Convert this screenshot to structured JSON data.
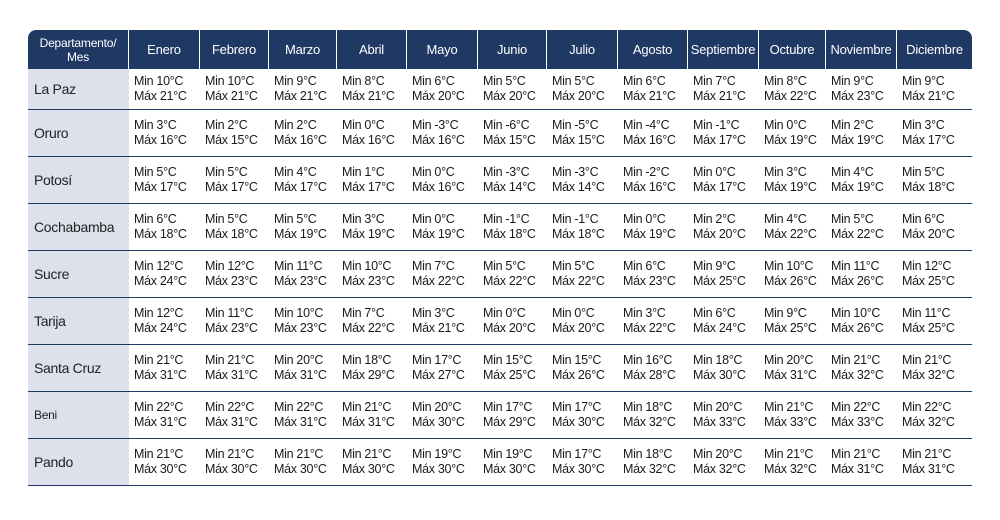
{
  "chart_data": {
    "type": "table",
    "header_corner": [
      "Departamento/",
      "Mes"
    ],
    "months": [
      "Enero",
      "Febrero",
      "Marzo",
      "Abril",
      "Mayo",
      "Junio",
      "Julio",
      "Agosto",
      "Septiembre",
      "Octubre",
      "Noviembre",
      "Diciembre"
    ],
    "rows": [
      {
        "dept": "La Paz",
        "cells": [
          [
            "Min 10°C",
            "Máx 21°C"
          ],
          [
            "Min 10°C",
            "Máx 21°C"
          ],
          [
            "Min 9°C",
            "Máx 21°C"
          ],
          [
            "Min 8°C",
            "Máx 21°C"
          ],
          [
            "Min 6°C",
            "Máx 20°C"
          ],
          [
            "Min 5°C",
            "Máx 20°C"
          ],
          [
            "Min 5°C",
            "Máx 20°C"
          ],
          [
            "Min 6°C",
            "Máx 21°C"
          ],
          [
            "Min 7°C",
            "Máx 21°C"
          ],
          [
            "Min 8°C",
            "Máx 22°C"
          ],
          [
            "Min 9°C",
            "Máx 23°C"
          ],
          [
            "Min 9°C",
            "Máx 21°C"
          ]
        ]
      },
      {
        "dept": "Oruro",
        "cells": [
          [
            "Min 3°C",
            "Máx 16°C"
          ],
          [
            "Min 2°C",
            "Máx 15°C"
          ],
          [
            "Min 2°C",
            "Máx 16°C"
          ],
          [
            "Min 0°C",
            "Máx 16°C"
          ],
          [
            "Min -3°C",
            "Máx 16°C"
          ],
          [
            "Min -6°C",
            "Máx 15°C"
          ],
          [
            "Min -5°C",
            "Máx 15°C"
          ],
          [
            "Min -4°C",
            "Máx 16°C"
          ],
          [
            "Min -1°C",
            "Máx 17°C"
          ],
          [
            "Min 0°C",
            "Máx 19°C"
          ],
          [
            "Min 2°C",
            "Máx 19°C"
          ],
          [
            "Min 3°C",
            "Máx 17°C"
          ]
        ]
      },
      {
        "dept": "Potosí",
        "cells": [
          [
            "Min 5°C",
            "Máx 17°C"
          ],
          [
            "Min 5°C",
            "Máx 17°C"
          ],
          [
            "Min 4°C",
            "Máx 17°C"
          ],
          [
            "Min 1°C",
            "Máx 17°C"
          ],
          [
            "Min 0°C",
            "Máx 16°C"
          ],
          [
            "Min -3°C",
            "Máx 14°C"
          ],
          [
            "Min -3°C",
            "Máx 14°C"
          ],
          [
            "Min -2°C",
            "Máx 16°C"
          ],
          [
            "Min 0°C",
            "Máx 17°C"
          ],
          [
            "Min 3°C",
            "Máx 19°C"
          ],
          [
            "Min 4°C",
            "Máx 19°C"
          ],
          [
            "Min 5°C",
            "Máx 18°C"
          ]
        ]
      },
      {
        "dept": "Cochabamba",
        "cells": [
          [
            "Min 6°C",
            "Máx 18°C"
          ],
          [
            "Min 5°C",
            "Máx 18°C"
          ],
          [
            "Min 5°C",
            "Máx 19°C"
          ],
          [
            "Min 3°C",
            "Máx 19°C"
          ],
          [
            "Min 0°C",
            "Máx 19°C"
          ],
          [
            "Min -1°C",
            "Máx 18°C"
          ],
          [
            "Min -1°C",
            "Máx 18°C"
          ],
          [
            "Min 0°C",
            "Máx 19°C"
          ],
          [
            "Min 2°C",
            "Máx 20°C"
          ],
          [
            "Min 4°C",
            "Máx 22°C"
          ],
          [
            "Min 5°C",
            "Máx 22°C"
          ],
          [
            "Min 6°C",
            "Máx 20°C"
          ]
        ]
      },
      {
        "dept": "Sucre",
        "cells": [
          [
            "Min 12°C",
            "Máx 24°C"
          ],
          [
            "Min 12°C",
            "Máx 23°C"
          ],
          [
            "Min 11°C",
            "Máx 23°C"
          ],
          [
            "Min 10°C",
            "Máx 23°C"
          ],
          [
            "Min 7°C",
            "Máx 22°C"
          ],
          [
            "Min 5°C",
            "Máx 22°C"
          ],
          [
            "Min 5°C",
            "Máx 22°C"
          ],
          [
            "Min 6°C",
            "Máx 23°C"
          ],
          [
            "Min 9°C",
            "Máx 25°C"
          ],
          [
            "Min 10°C",
            "Máx 26°C"
          ],
          [
            "Min 11°C",
            "Máx 26°C"
          ],
          [
            "Min 12°C",
            "Máx 25°C"
          ]
        ]
      },
      {
        "dept": "Tarija",
        "cells": [
          [
            "Min 12°C",
            "Máx 24°C"
          ],
          [
            "Min 11°C",
            "Máx 23°C"
          ],
          [
            "Min 10°C",
            "Máx 23°C"
          ],
          [
            "Min 7°C",
            "Máx 22°C"
          ],
          [
            "Min 3°C",
            "Máx 21°C"
          ],
          [
            "Min 0°C",
            "Máx 20°C"
          ],
          [
            "Min 0°C",
            "Máx 20°C"
          ],
          [
            "Min 3°C",
            "Máx 22°C"
          ],
          [
            "Min 6°C",
            "Máx 24°C"
          ],
          [
            "Min 9°C",
            "Máx 25°C"
          ],
          [
            "Min 10°C",
            "Máx 26°C"
          ],
          [
            "Min 11°C",
            "Máx 25°C"
          ]
        ]
      },
      {
        "dept": "Santa Cruz",
        "cells": [
          [
            "Min 21°C",
            "Máx 31°C"
          ],
          [
            "Min 21°C",
            "Máx 31°C"
          ],
          [
            "Min 20°C",
            "Máx 31°C"
          ],
          [
            "Min 18°C",
            "Máx 29°C"
          ],
          [
            "Min 17°C",
            "Máx 27°C"
          ],
          [
            "Min 15°C",
            "Máx 25°C"
          ],
          [
            "Min 15°C",
            "Máx 26°C"
          ],
          [
            "Min 16°C",
            "Máx 28°C"
          ],
          [
            "Min 18°C",
            "Máx 30°C"
          ],
          [
            "Min 20°C",
            "Máx 31°C"
          ],
          [
            "Min 21°C",
            "Máx 32°C"
          ],
          [
            "Min 21°C",
            "Máx 32°C"
          ]
        ]
      },
      {
        "dept": "Beni",
        "small": true,
        "cells": [
          [
            "Min 22°C",
            "Máx 31°C"
          ],
          [
            "Min 22°C",
            "Máx 31°C"
          ],
          [
            "Min 22°C",
            "Máx 31°C"
          ],
          [
            "Min 21°C",
            "Máx 31°C"
          ],
          [
            "Min 20°C",
            "Máx 30°C"
          ],
          [
            "Min 17°C",
            "Máx 29°C"
          ],
          [
            "Min 17°C",
            "Máx 30°C"
          ],
          [
            "Min 18°C",
            "Máx 32°C"
          ],
          [
            "Min 20°C",
            "Máx 33°C"
          ],
          [
            "Min 21°C",
            "Máx 33°C"
          ],
          [
            "Min 22°C",
            "Máx 33°C"
          ],
          [
            "Min 22°C",
            "Máx 32°C"
          ]
        ]
      },
      {
        "dept": "Pando",
        "cells": [
          [
            "Min 21°C",
            "Máx 30°C"
          ],
          [
            "Min 21°C",
            "Máx 30°C"
          ],
          [
            "Min 21°C",
            "Máx 30°C"
          ],
          [
            "Min 21°C",
            "Máx 30°C"
          ],
          [
            "Min 19°C",
            "Máx 30°C"
          ],
          [
            "Min 19°C",
            "Máx 30°C"
          ],
          [
            "Min 17°C",
            "Máx 30°C"
          ],
          [
            "Min 18°C",
            "Máx 32°C"
          ],
          [
            "Min 20°C",
            "Máx 32°C"
          ],
          [
            "Min 21°C",
            "Máx 32°C"
          ],
          [
            "Min 21°C",
            "Máx 31°C"
          ],
          [
            "Min 21°C",
            "Máx 31°C"
          ]
        ]
      }
    ]
  },
  "colors": {
    "header_bg": "#1f3864",
    "dept_bg": "#dce1ec",
    "rule": "#1f3864"
  }
}
